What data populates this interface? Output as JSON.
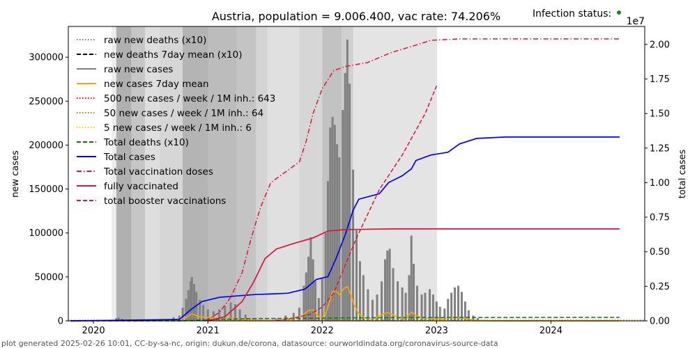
{
  "chart_data": {
    "type": "line",
    "title": "Austria, population = 9.006.400, vac rate: 74.206%",
    "status_label": "Infection status:",
    "status_color": "#1a8a1a",
    "ylabel_left": "new cases",
    "ylabel_right": "total cases",
    "right_offset_label": "1e7",
    "xlim": [
      2019.78,
      2024.82
    ],
    "ylim_left": [
      0,
      335000
    ],
    "ylim_right": [
      0,
      2.13
    ],
    "x_ticks": [
      {
        "v": 2020,
        "label": "2020"
      },
      {
        "v": 2021,
        "label": "2021"
      },
      {
        "v": 2022,
        "label": "2022"
      },
      {
        "v": 2023,
        "label": "2023"
      },
      {
        "v": 2024,
        "label": "2024"
      }
    ],
    "y_ticks_left": [
      {
        "v": 0,
        "label": "0"
      },
      {
        "v": 50000,
        "label": "50000"
      },
      {
        "v": 100000,
        "label": "100000"
      },
      {
        "v": 150000,
        "label": "150000"
      },
      {
        "v": 200000,
        "label": "200000"
      },
      {
        "v": 250000,
        "label": "250000"
      },
      {
        "v": 300000,
        "label": "300000"
      }
    ],
    "y_ticks_right": [
      {
        "v": 0,
        "label": "0.00"
      },
      {
        "v": 0.25,
        "label": "0.25"
      },
      {
        "v": 0.5,
        "label": "0.50"
      },
      {
        "v": 0.75,
        "label": "0.75"
      },
      {
        "v": 1.0,
        "label": "1.00"
      },
      {
        "v": 1.25,
        "label": "1.25"
      },
      {
        "v": 1.5,
        "label": "1.50"
      },
      {
        "v": 1.75,
        "label": "1.75"
      },
      {
        "v": 2.0,
        "label": "2.00"
      }
    ],
    "infection_status_bands": [
      {
        "from": 2020.16,
        "to": 2020.2,
        "color": "#ececec"
      },
      {
        "from": 2020.2,
        "to": 2020.33,
        "color": "#b0b0b0"
      },
      {
        "from": 2020.33,
        "to": 2020.45,
        "color": "#c6c6c6"
      },
      {
        "from": 2020.45,
        "to": 2020.58,
        "color": "#dedede"
      },
      {
        "from": 2020.58,
        "to": 2020.78,
        "color": "#d6d6d6"
      },
      {
        "from": 2020.78,
        "to": 2021.0,
        "color": "#b4b4b4"
      },
      {
        "from": 2021.0,
        "to": 2021.25,
        "color": "#bcbcbc"
      },
      {
        "from": 2021.25,
        "to": 2021.42,
        "color": "#c4c4c4"
      },
      {
        "from": 2021.42,
        "to": 2021.52,
        "color": "#d4d4d4"
      },
      {
        "from": 2021.52,
        "to": 2021.8,
        "color": "#e0e0e0"
      },
      {
        "from": 2021.8,
        "to": 2022.0,
        "color": "#d6d6d6"
      },
      {
        "from": 2022.0,
        "to": 2022.17,
        "color": "#c2c2c2"
      },
      {
        "from": 2022.17,
        "to": 2022.27,
        "color": "#d0d0d0"
      },
      {
        "from": 2022.27,
        "to": 2023.0,
        "color": "#e4e4e4"
      }
    ],
    "raw_new_cases": [
      [
        2020.2,
        3000
      ],
      [
        2020.22,
        4000
      ],
      [
        2020.25,
        2500
      ],
      [
        2020.3,
        800
      ],
      [
        2020.6,
        1500
      ],
      [
        2020.7,
        4000
      ],
      [
        2020.75,
        6000
      ],
      [
        2020.78,
        15000
      ],
      [
        2020.81,
        25000
      ],
      [
        2020.83,
        35000
      ],
      [
        2020.85,
        45000
      ],
      [
        2020.86,
        50000
      ],
      [
        2020.88,
        42000
      ],
      [
        2020.9,
        33000
      ],
      [
        2020.93,
        24000
      ],
      [
        2020.96,
        18000
      ],
      [
        2021.0,
        13000
      ],
      [
        2021.05,
        11000
      ],
      [
        2021.1,
        13000
      ],
      [
        2021.15,
        17000
      ],
      [
        2021.2,
        21000
      ],
      [
        2021.24,
        19000
      ],
      [
        2021.28,
        13000
      ],
      [
        2021.33,
        7000
      ],
      [
        2021.4,
        3000
      ],
      [
        2021.5,
        1000
      ],
      [
        2021.6,
        2500
      ],
      [
        2021.68,
        6000
      ],
      [
        2021.75,
        9000
      ],
      [
        2021.8,
        15000
      ],
      [
        2021.84,
        40000
      ],
      [
        2021.86,
        55000
      ],
      [
        2021.88,
        73000
      ],
      [
        2021.9,
        95000
      ],
      [
        2021.92,
        70000
      ],
      [
        2021.94,
        45000
      ],
      [
        2021.97,
        26000
      ],
      [
        2022.0,
        48000
      ],
      [
        2022.03,
        100000
      ],
      [
        2022.05,
        159000
      ],
      [
        2022.07,
        220000
      ],
      [
        2022.09,
        232000
      ],
      [
        2022.11,
        223000
      ],
      [
        2022.13,
        201000
      ],
      [
        2022.15,
        186000
      ],
      [
        2022.18,
        240000
      ],
      [
        2022.2,
        282000
      ],
      [
        2022.22,
        320000
      ],
      [
        2022.24,
        270000
      ],
      [
        2022.27,
        172000
      ],
      [
        2022.3,
        103000
      ],
      [
        2022.33,
        68000
      ],
      [
        2022.36,
        52000
      ],
      [
        2022.4,
        36000
      ],
      [
        2022.44,
        24000
      ],
      [
        2022.48,
        30000
      ],
      [
        2022.52,
        45000
      ],
      [
        2022.55,
        70000
      ],
      [
        2022.57,
        80000
      ],
      [
        2022.59,
        82000
      ],
      [
        2022.62,
        60000
      ],
      [
        2022.66,
        45000
      ],
      [
        2022.7,
        38000
      ],
      [
        2022.73,
        32000
      ],
      [
        2022.76,
        52000
      ],
      [
        2022.78,
        97000
      ],
      [
        2022.8,
        65000
      ],
      [
        2022.83,
        40000
      ],
      [
        2022.87,
        30000
      ],
      [
        2022.9,
        32000
      ],
      [
        2022.94,
        36000
      ],
      [
        2022.97,
        30000
      ],
      [
        2023.0,
        22000
      ],
      [
        2023.03,
        16000
      ],
      [
        2023.07,
        14000
      ],
      [
        2023.1,
        25000
      ],
      [
        2023.13,
        32000
      ],
      [
        2023.16,
        38000
      ],
      [
        2023.19,
        40000
      ],
      [
        2023.22,
        33000
      ],
      [
        2023.25,
        22000
      ],
      [
        2023.28,
        12000
      ],
      [
        2023.32,
        6000
      ],
      [
        2023.36,
        3000
      ],
      [
        2023.42,
        1000
      ]
    ],
    "series": [
      {
        "name": "raw new deaths (x10)",
        "axis": "left",
        "color": "#808080",
        "style": "dotted",
        "points": [
          [
            2019.8,
            300
          ],
          [
            2024.6,
            300
          ]
        ]
      },
      {
        "name": "new deaths 7day mean (x10)",
        "axis": "left",
        "color": "#000000",
        "style": "dashed",
        "points": [
          [
            2019.8,
            0
          ],
          [
            2020.8,
            0
          ]
        ]
      },
      {
        "name": "raw new cases",
        "axis": "left",
        "color": "#808080",
        "style": "solid",
        "points": []
      },
      {
        "name": "new cases 7day mean",
        "axis": "left",
        "color": "#ffa500",
        "style": "solid",
        "points": [
          [
            2019.8,
            0
          ],
          [
            2020.7,
            500
          ],
          [
            2020.8,
            3000
          ],
          [
            2020.86,
            8000
          ],
          [
            2020.92,
            5000
          ],
          [
            2021.0,
            4000
          ],
          [
            2021.1,
            2500
          ],
          [
            2021.2,
            3000
          ],
          [
            2021.35,
            1500
          ],
          [
            2021.5,
            300
          ],
          [
            2021.7,
            1500
          ],
          [
            2021.82,
            5000
          ],
          [
            2021.88,
            12000
          ],
          [
            2021.92,
            12500
          ],
          [
            2021.97,
            5000
          ],
          [
            2022.02,
            4000
          ],
          [
            2022.06,
            20000
          ],
          [
            2022.09,
            33000
          ],
          [
            2022.12,
            34000
          ],
          [
            2022.15,
            30000
          ],
          [
            2022.19,
            37000
          ],
          [
            2022.22,
            39000
          ],
          [
            2022.25,
            30000
          ],
          [
            2022.28,
            18000
          ],
          [
            2022.32,
            8000
          ],
          [
            2022.38,
            3000
          ],
          [
            2022.45,
            2500
          ],
          [
            2022.52,
            7000
          ],
          [
            2022.57,
            9500
          ],
          [
            2022.62,
            7000
          ],
          [
            2022.67,
            3000
          ],
          [
            2022.72,
            2500
          ],
          [
            2022.78,
            10000
          ],
          [
            2022.82,
            6000
          ],
          [
            2022.88,
            3000
          ],
          [
            2022.95,
            2500
          ],
          [
            2023.05,
            2000
          ],
          [
            2023.15,
            4000
          ],
          [
            2023.25,
            2500
          ],
          [
            2023.35,
            500
          ],
          [
            2023.5,
            0
          ],
          [
            2024.6,
            0
          ]
        ]
      },
      {
        "name": "500 new cases / week / 1M inh.: 643",
        "axis": "left",
        "color": "#ff0000",
        "style": "dotted",
        "points": [
          [
            2019.78,
            643
          ],
          [
            2024.82,
            643
          ]
        ]
      },
      {
        "name": "50 new cases / week / 1M inh.: 64",
        "axis": "left",
        "color": "#d2691e",
        "style": "dotted",
        "points": [
          [
            2019.78,
            64
          ],
          [
            2024.82,
            64
          ]
        ]
      },
      {
        "name": "5 new cases / week / 1M inh.: 6",
        "axis": "left",
        "color": "#ffd700",
        "style": "dotted",
        "points": [
          [
            2019.78,
            6
          ],
          [
            2024.82,
            6
          ]
        ]
      },
      {
        "name": "Total deaths (x10)",
        "axis": "left",
        "color": "#008000",
        "style": "dashed",
        "points": [
          [
            2019.8,
            0
          ],
          [
            2020.8,
            200
          ],
          [
            2021.1,
            1800
          ],
          [
            2021.4,
            2600
          ],
          [
            2021.9,
            3000
          ],
          [
            2022.2,
            3400
          ],
          [
            2022.8,
            3700
          ],
          [
            2023.3,
            3900
          ],
          [
            2024.6,
            3950
          ]
        ]
      },
      {
        "name": "Total cases",
        "axis": "right",
        "color": "#0000ff",
        "style": "solid",
        "points": [
          [
            2019.8,
            0
          ],
          [
            2020.75,
            0.01
          ],
          [
            2020.85,
            0.08
          ],
          [
            2020.95,
            0.14
          ],
          [
            2021.1,
            0.17
          ],
          [
            2021.4,
            0.19
          ],
          [
            2021.7,
            0.2
          ],
          [
            2021.85,
            0.23
          ],
          [
            2021.95,
            0.3
          ],
          [
            2022.05,
            0.32
          ],
          [
            2022.12,
            0.45
          ],
          [
            2022.2,
            0.62
          ],
          [
            2022.27,
            0.8
          ],
          [
            2022.32,
            0.88
          ],
          [
            2022.5,
            0.92
          ],
          [
            2022.58,
            1.0
          ],
          [
            2022.7,
            1.05
          ],
          [
            2022.78,
            1.1
          ],
          [
            2022.82,
            1.16
          ],
          [
            2022.95,
            1.2
          ],
          [
            2023.1,
            1.22
          ],
          [
            2023.2,
            1.28
          ],
          [
            2023.35,
            1.32
          ],
          [
            2023.6,
            1.33
          ],
          [
            2024.6,
            1.33
          ]
        ]
      },
      {
        "name": "Total vaccination doses",
        "axis": "right",
        "color": "#dc143c",
        "style": "dashdot",
        "points": [
          [
            2020.98,
            0
          ],
          [
            2021.1,
            0.06
          ],
          [
            2021.2,
            0.17
          ],
          [
            2021.3,
            0.35
          ],
          [
            2021.38,
            0.6
          ],
          [
            2021.46,
            0.82
          ],
          [
            2021.55,
            1.0
          ],
          [
            2021.65,
            1.06
          ],
          [
            2021.8,
            1.15
          ],
          [
            2021.86,
            1.3
          ],
          [
            2021.92,
            1.5
          ],
          [
            2022.0,
            1.68
          ],
          [
            2022.1,
            1.81
          ],
          [
            2022.2,
            1.84
          ],
          [
            2022.4,
            1.87
          ],
          [
            2022.6,
            1.94
          ],
          [
            2022.8,
            1.99
          ],
          [
            2022.95,
            2.03
          ],
          [
            2023.2,
            2.04
          ],
          [
            2024.6,
            2.04
          ]
        ]
      },
      {
        "name": "fully vaccinated",
        "axis": "right",
        "color": "#dc143c",
        "style": "solid",
        "points": [
          [
            2021.0,
            0
          ],
          [
            2021.15,
            0.03
          ],
          [
            2021.3,
            0.14
          ],
          [
            2021.4,
            0.28
          ],
          [
            2021.5,
            0.45
          ],
          [
            2021.6,
            0.52
          ],
          [
            2021.75,
            0.56
          ],
          [
            2021.92,
            0.6
          ],
          [
            2022.05,
            0.65
          ],
          [
            2022.2,
            0.66
          ],
          [
            2022.6,
            0.665
          ],
          [
            2024.6,
            0.665
          ]
        ]
      },
      {
        "name": "total booster vaccinations",
        "axis": "right",
        "color": "#dc143c",
        "style": "dashed",
        "points": [
          [
            2021.6,
            0
          ],
          [
            2021.75,
            0.02
          ],
          [
            2021.9,
            0.05
          ],
          [
            2022.0,
            0.1
          ],
          [
            2022.1,
            0.2
          ],
          [
            2022.2,
            0.4
          ],
          [
            2022.3,
            0.6
          ],
          [
            2022.5,
            0.95
          ],
          [
            2022.7,
            1.2
          ],
          [
            2022.9,
            1.5
          ],
          [
            2023.0,
            1.7
          ]
        ]
      }
    ],
    "legend_position": "top-left",
    "footer": "plot generated 2025-02-26 10:01, CC-by-sa-nc, origin: dukun.de/corona, datasource: ourworldindata.org/coronavirus-source-data"
  }
}
